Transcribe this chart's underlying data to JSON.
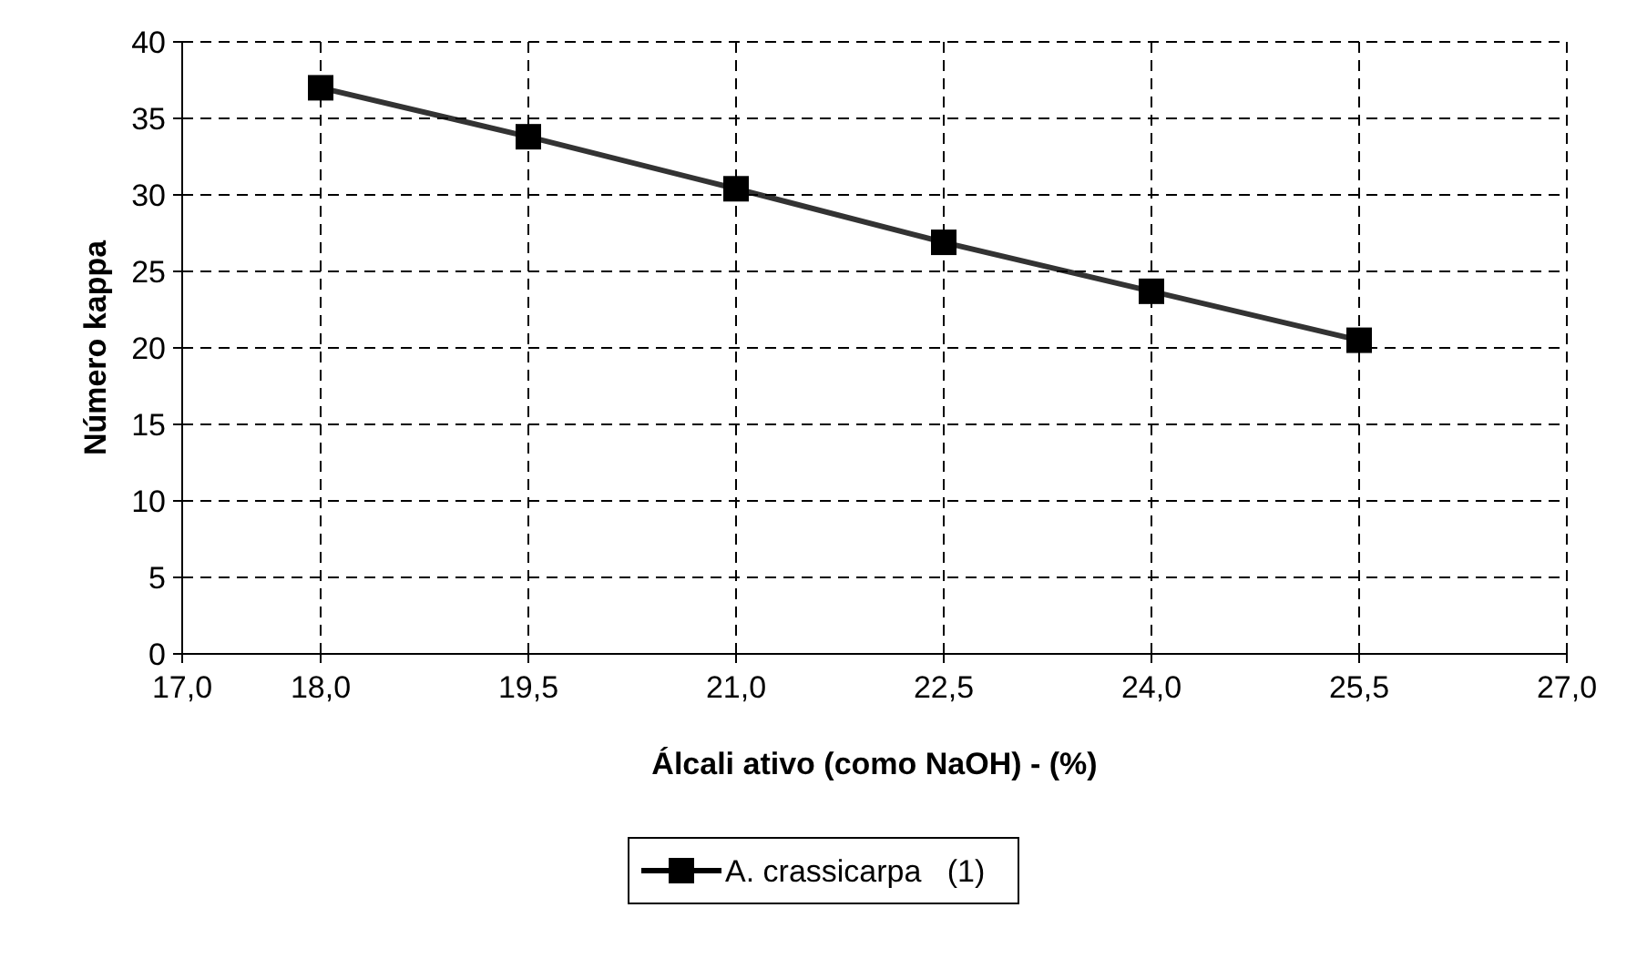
{
  "chart_data": {
    "type": "line",
    "xlabel": "Álcali ativo (como NaOH) - (%)",
    "ylabel": "Número kappa",
    "x": [
      18.0,
      19.5,
      21.0,
      22.5,
      24.0,
      25.5
    ],
    "series": [
      {
        "name": "A. crassicarpa   (1)",
        "color": "#000000",
        "values": [
          37.0,
          33.8,
          30.4,
          26.9,
          23.7,
          20.5
        ]
      }
    ],
    "xlim": [
      17,
      27
    ],
    "xticks": [
      {
        "value": 17,
        "label": "17,0"
      },
      {
        "value": 18,
        "label": "18,0"
      },
      {
        "value": 19.5,
        "label": "19,5"
      },
      {
        "value": 21,
        "label": "21,0"
      },
      {
        "value": 22.5,
        "label": "22,5"
      },
      {
        "value": 24,
        "label": "24,0"
      },
      {
        "value": 25.5,
        "label": "25,5"
      },
      {
        "value": 27,
        "label": "27,0"
      }
    ],
    "ylim": [
      0,
      40
    ],
    "yticks": [
      0,
      5,
      10,
      15,
      20,
      25,
      30,
      35,
      40
    ],
    "grid": true,
    "legend": "bottom",
    "marker": "square",
    "line_style": "solid"
  }
}
